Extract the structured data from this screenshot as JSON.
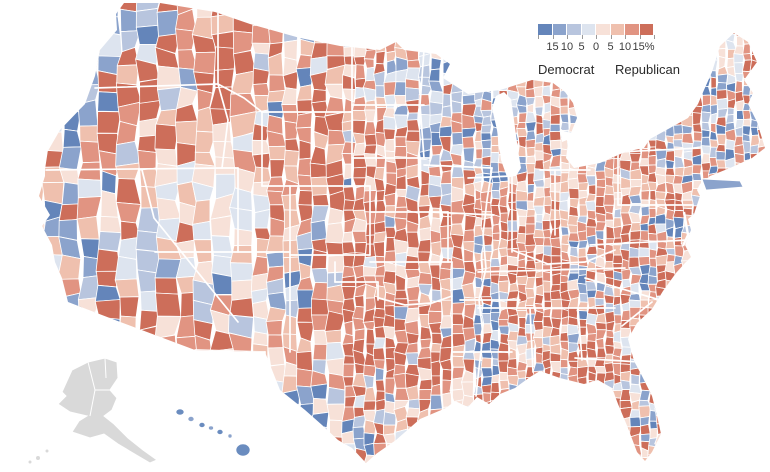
{
  "legend": {
    "colors": [
      "#6485ba",
      "#8ba3cc",
      "#b8c5de",
      "#dde4ef",
      "#f7e1d8",
      "#efc0ae",
      "#e19482",
      "#cd6e5a"
    ],
    "ticks": [
      "15",
      "10",
      "5",
      "0",
      "5",
      "10",
      "15%"
    ],
    "democrat_label": "Democrat",
    "republican_label": "Republican"
  },
  "map": {
    "type": "county-choropleth",
    "description": "United States county-level vote margin map shaded from Democrat (blue) to Republican (red) in 5-point steps up to 15+",
    "background_color": "#ffffff",
    "county_border_color": "#ffffff",
    "no_data_color": "#d9d9d9",
    "hawaii_color": "#6a8cbf",
    "insets": [
      "Alaska",
      "Hawaii"
    ]
  }
}
